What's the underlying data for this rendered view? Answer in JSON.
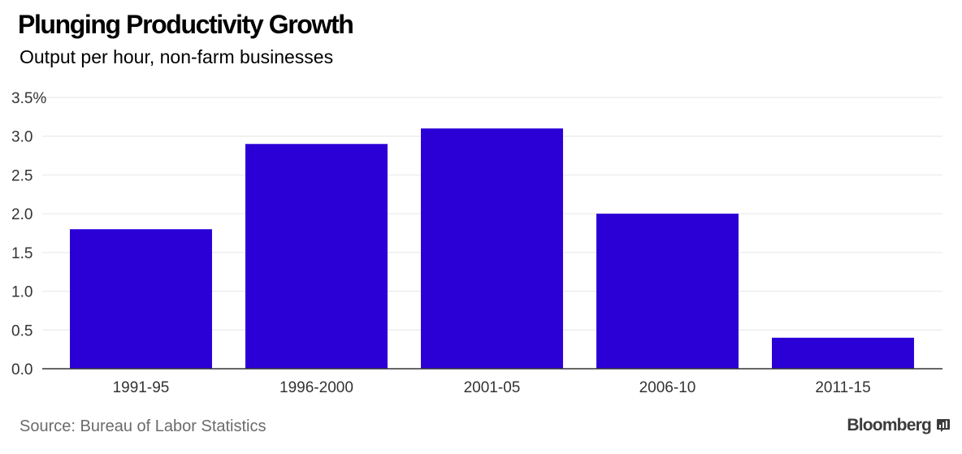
{
  "chart_data": {
    "type": "bar",
    "title": "Plunging Productivity Growth",
    "subtitle": "Output per hour, non-farm businesses",
    "categories": [
      "1991-95",
      "1996-2000",
      "2001-05",
      "2006-10",
      "2011-15"
    ],
    "values": [
      1.8,
      2.9,
      3.1,
      2.0,
      0.4
    ],
    "ylim": [
      0,
      3.5
    ],
    "yticks": [
      0,
      0.5,
      1.0,
      1.5,
      2.0,
      2.5,
      3.0,
      3.5
    ],
    "ytick_labels": [
      "0.0",
      "0.5",
      "1.0",
      "1.5",
      "2.0",
      "2.5",
      "3.0",
      "3.5%"
    ],
    "xlabel": "",
    "ylabel": "",
    "grid": true,
    "bar_color": "#2b00d6",
    "grid_color": "#e6e6e6"
  },
  "footer": {
    "source": "Source: Bureau of Labor Statistics",
    "brand": "Bloomberg"
  }
}
